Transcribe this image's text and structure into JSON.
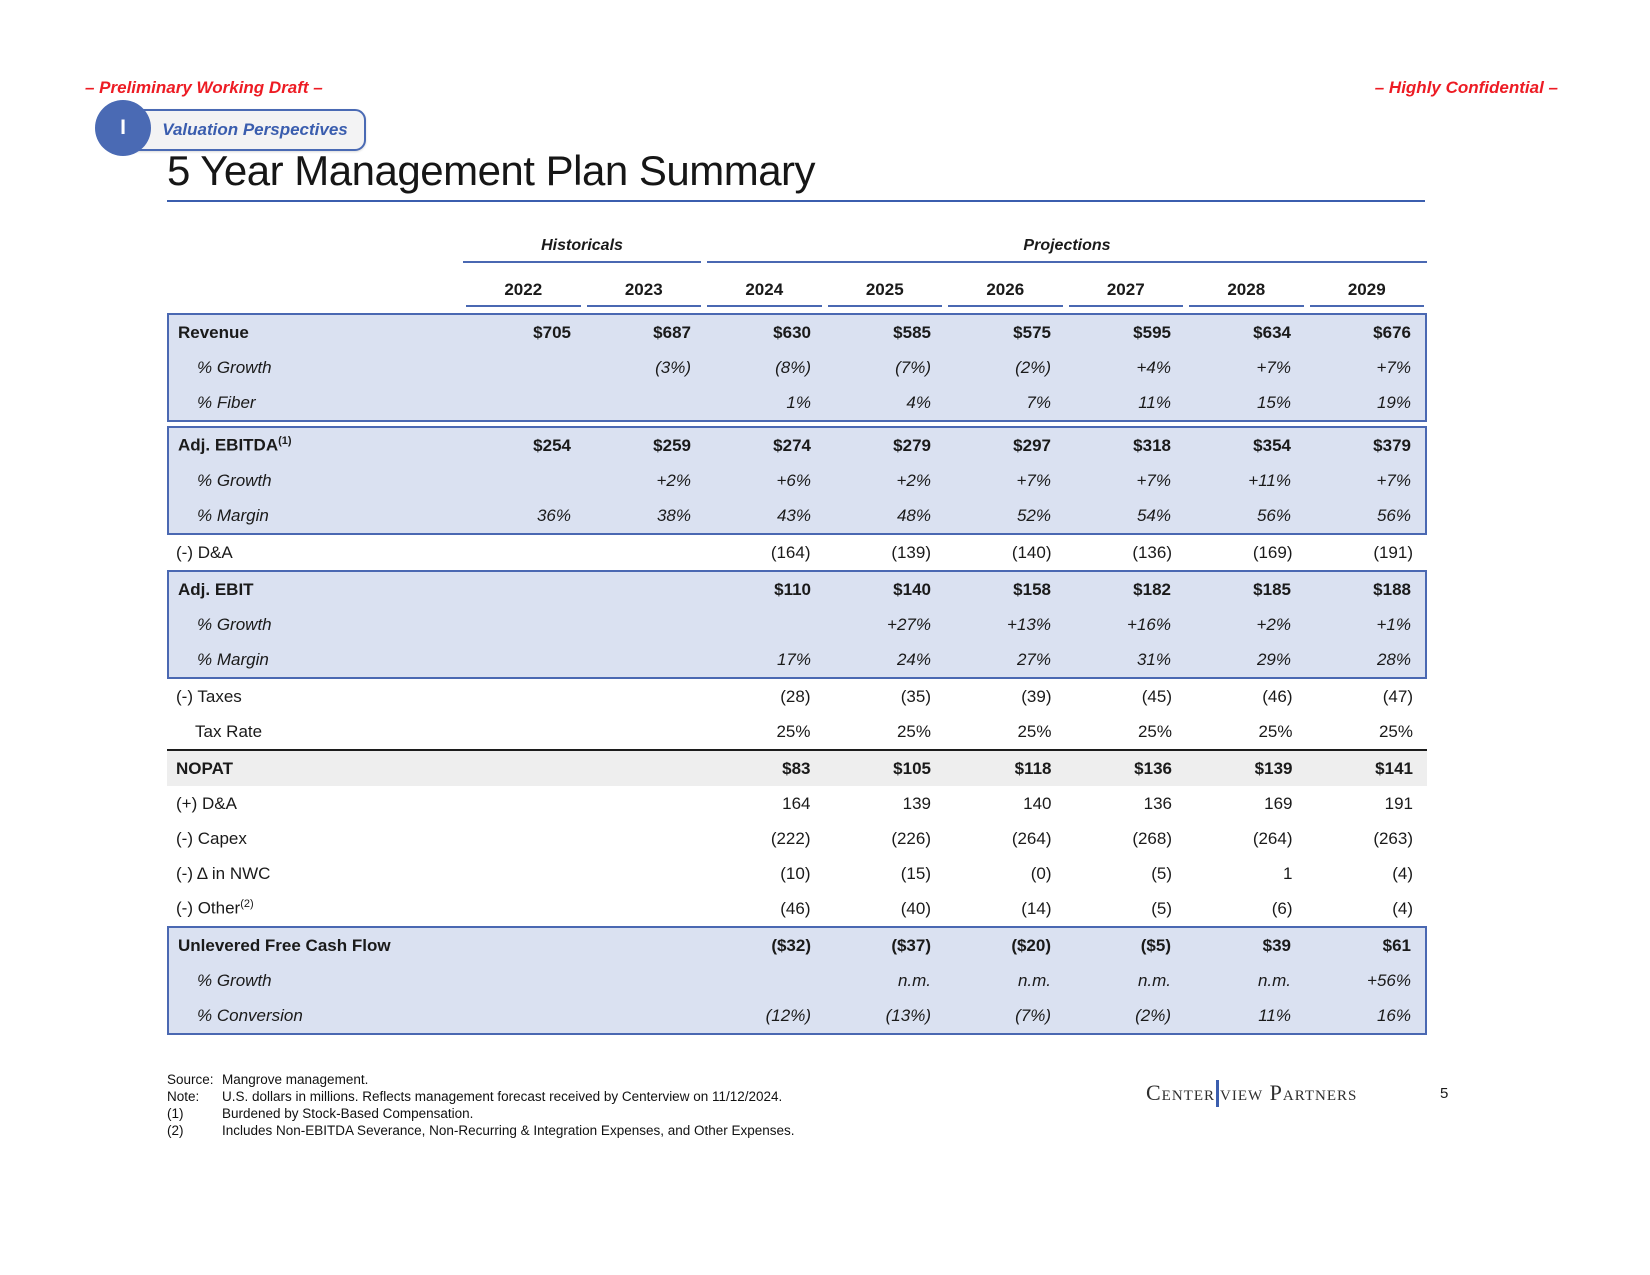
{
  "header": {
    "draft_label": "– Preliminary Working Draft –",
    "confidential_label": "– Highly Confidential –",
    "section_number": "I",
    "section_label": "Valuation Perspectives",
    "title": "5 Year Management Plan Summary"
  },
  "table": {
    "groups": [
      "Historicals",
      "Projections"
    ],
    "years": [
      "2022",
      "2023",
      "2024",
      "2025",
      "2026",
      "2027",
      "2028",
      "2029"
    ],
    "sections": [
      {
        "kind": "blue",
        "gap_top": false,
        "rows": [
          {
            "label": "Revenue",
            "sup": "",
            "style": "bold",
            "indent": false,
            "values": [
              "$705",
              "$687",
              "$630",
              "$585",
              "$575",
              "$595",
              "$634",
              "$676"
            ]
          },
          {
            "label": "% Growth",
            "sup": "",
            "style": "italic",
            "indent": true,
            "values": [
              "",
              "(3%)",
              "(8%)",
              "(7%)",
              "(2%)",
              "+4%",
              "+7%",
              "+7%"
            ]
          },
          {
            "label": "% Fiber",
            "sup": "",
            "style": "italic",
            "indent": true,
            "values": [
              "",
              "",
              "1%",
              "4%",
              "7%",
              "11%",
              "15%",
              "19%"
            ]
          }
        ]
      },
      {
        "kind": "blue",
        "gap_top": true,
        "rows": [
          {
            "label": "Adj. EBITDA",
            "sup": "(1)",
            "style": "bold",
            "indent": false,
            "values": [
              "$254",
              "$259",
              "$274",
              "$279",
              "$297",
              "$318",
              "$354",
              "$379"
            ]
          },
          {
            "label": "% Growth",
            "sup": "",
            "style": "italic",
            "indent": true,
            "values": [
              "",
              "+2%",
              "+6%",
              "+2%",
              "+7%",
              "+7%",
              "+11%",
              "+7%"
            ]
          },
          {
            "label": "% Margin",
            "sup": "",
            "style": "italic",
            "indent": true,
            "values": [
              "36%",
              "38%",
              "43%",
              "48%",
              "52%",
              "54%",
              "56%",
              "56%"
            ]
          }
        ]
      },
      {
        "kind": "plain",
        "gap_top": false,
        "rows": [
          {
            "label": "(-) D&A",
            "sup": "",
            "style": "plain",
            "indent": false,
            "values": [
              "",
              "",
              "(164)",
              "(139)",
              "(140)",
              "(136)",
              "(169)",
              "(191)"
            ]
          }
        ]
      },
      {
        "kind": "blue",
        "gap_top": false,
        "rows": [
          {
            "label": "Adj. EBIT",
            "sup": "",
            "style": "bold",
            "indent": false,
            "values": [
              "",
              "",
              "$110",
              "$140",
              "$158",
              "$182",
              "$185",
              "$188"
            ]
          },
          {
            "label": "% Growth",
            "sup": "",
            "style": "italic",
            "indent": true,
            "values": [
              "",
              "",
              "",
              "+27%",
              "+13%",
              "+16%",
              "+2%",
              "+1%"
            ]
          },
          {
            "label": "% Margin",
            "sup": "",
            "style": "italic",
            "indent": true,
            "values": [
              "",
              "",
              "17%",
              "24%",
              "27%",
              "31%",
              "29%",
              "28%"
            ]
          }
        ]
      },
      {
        "kind": "plain",
        "gap_top": false,
        "rows": [
          {
            "label": "(-) Taxes",
            "sup": "",
            "style": "plain",
            "indent": false,
            "values": [
              "",
              "",
              "(28)",
              "(35)",
              "(39)",
              "(45)",
              "(46)",
              "(47)"
            ]
          },
          {
            "label": "Tax Rate",
            "sup": "",
            "style": "plain",
            "indent": true,
            "values": [
              "",
              "",
              "25%",
              "25%",
              "25%",
              "25%",
              "25%",
              "25%"
            ]
          }
        ]
      },
      {
        "kind": "gray",
        "gap_top": false,
        "rows": [
          {
            "label": "NOPAT",
            "sup": "",
            "style": "bold",
            "indent": false,
            "values": [
              "",
              "",
              "$83",
              "$105",
              "$118",
              "$136",
              "$139",
              "$141"
            ]
          }
        ]
      },
      {
        "kind": "plain",
        "gap_top": false,
        "rows": [
          {
            "label": "(+) D&A",
            "sup": "",
            "style": "plain",
            "indent": false,
            "values": [
              "",
              "",
              "164",
              "139",
              "140",
              "136",
              "169",
              "191"
            ]
          },
          {
            "label": "(-) Capex",
            "sup": "",
            "style": "plain",
            "indent": false,
            "values": [
              "",
              "",
              "(222)",
              "(226)",
              "(264)",
              "(268)",
              "(264)",
              "(263)"
            ]
          },
          {
            "label": "(-) Δ in NWC",
            "sup": "",
            "style": "plain",
            "indent": false,
            "values": [
              "",
              "",
              "(10)",
              "(15)",
              "(0)",
              "(5)",
              "1",
              "(4)"
            ]
          },
          {
            "label": "(-) Other",
            "sup": "(2)",
            "style": "plain",
            "indent": false,
            "values": [
              "",
              "",
              "(46)",
              "(40)",
              "(14)",
              "(5)",
              "(6)",
              "(4)"
            ]
          }
        ]
      },
      {
        "kind": "blue",
        "gap_top": false,
        "rows": [
          {
            "label": "Unlevered Free Cash Flow",
            "sup": "",
            "style": "bold",
            "indent": false,
            "values": [
              "",
              "",
              "($32)",
              "($37)",
              "($20)",
              "($5)",
              "$39",
              "$61"
            ]
          },
          {
            "label": "% Growth",
            "sup": "",
            "style": "italic",
            "indent": true,
            "values": [
              "",
              "",
              "",
              "n.m.",
              "n.m.",
              "n.m.",
              "n.m.",
              "+56%"
            ]
          },
          {
            "label": "% Conversion",
            "sup": "",
            "style": "italic",
            "indent": true,
            "values": [
              "",
              "",
              "(12%)",
              "(13%)",
              "(7%)",
              "(2%)",
              "11%",
              "16%"
            ]
          }
        ]
      }
    ]
  },
  "footnotes": [
    {
      "key": "Source:",
      "text": "Mangrove management."
    },
    {
      "key": "Note:",
      "text": "U.S. dollars in millions. Reflects management forecast received by Centerview on 11/12/2024."
    },
    {
      "key": "(1)",
      "text": "Burdened by Stock-Based Compensation."
    },
    {
      "key": "(2)",
      "text": "Includes Non-EBITDA Severance, Non-Recurring & Integration Expenses, and Other Expenses."
    }
  ],
  "footer": {
    "logo_left": "Center",
    "logo_right": "view Partners",
    "page_number": "5"
  },
  "colors": {
    "accent_red": "#ed1c24",
    "accent_blue": "#4a68b2",
    "title_rule_blue": "#3b5eae",
    "block_fill": "#dae1f1",
    "nopat_fill": "#eeeeee",
    "text": "#1a1a1a"
  }
}
